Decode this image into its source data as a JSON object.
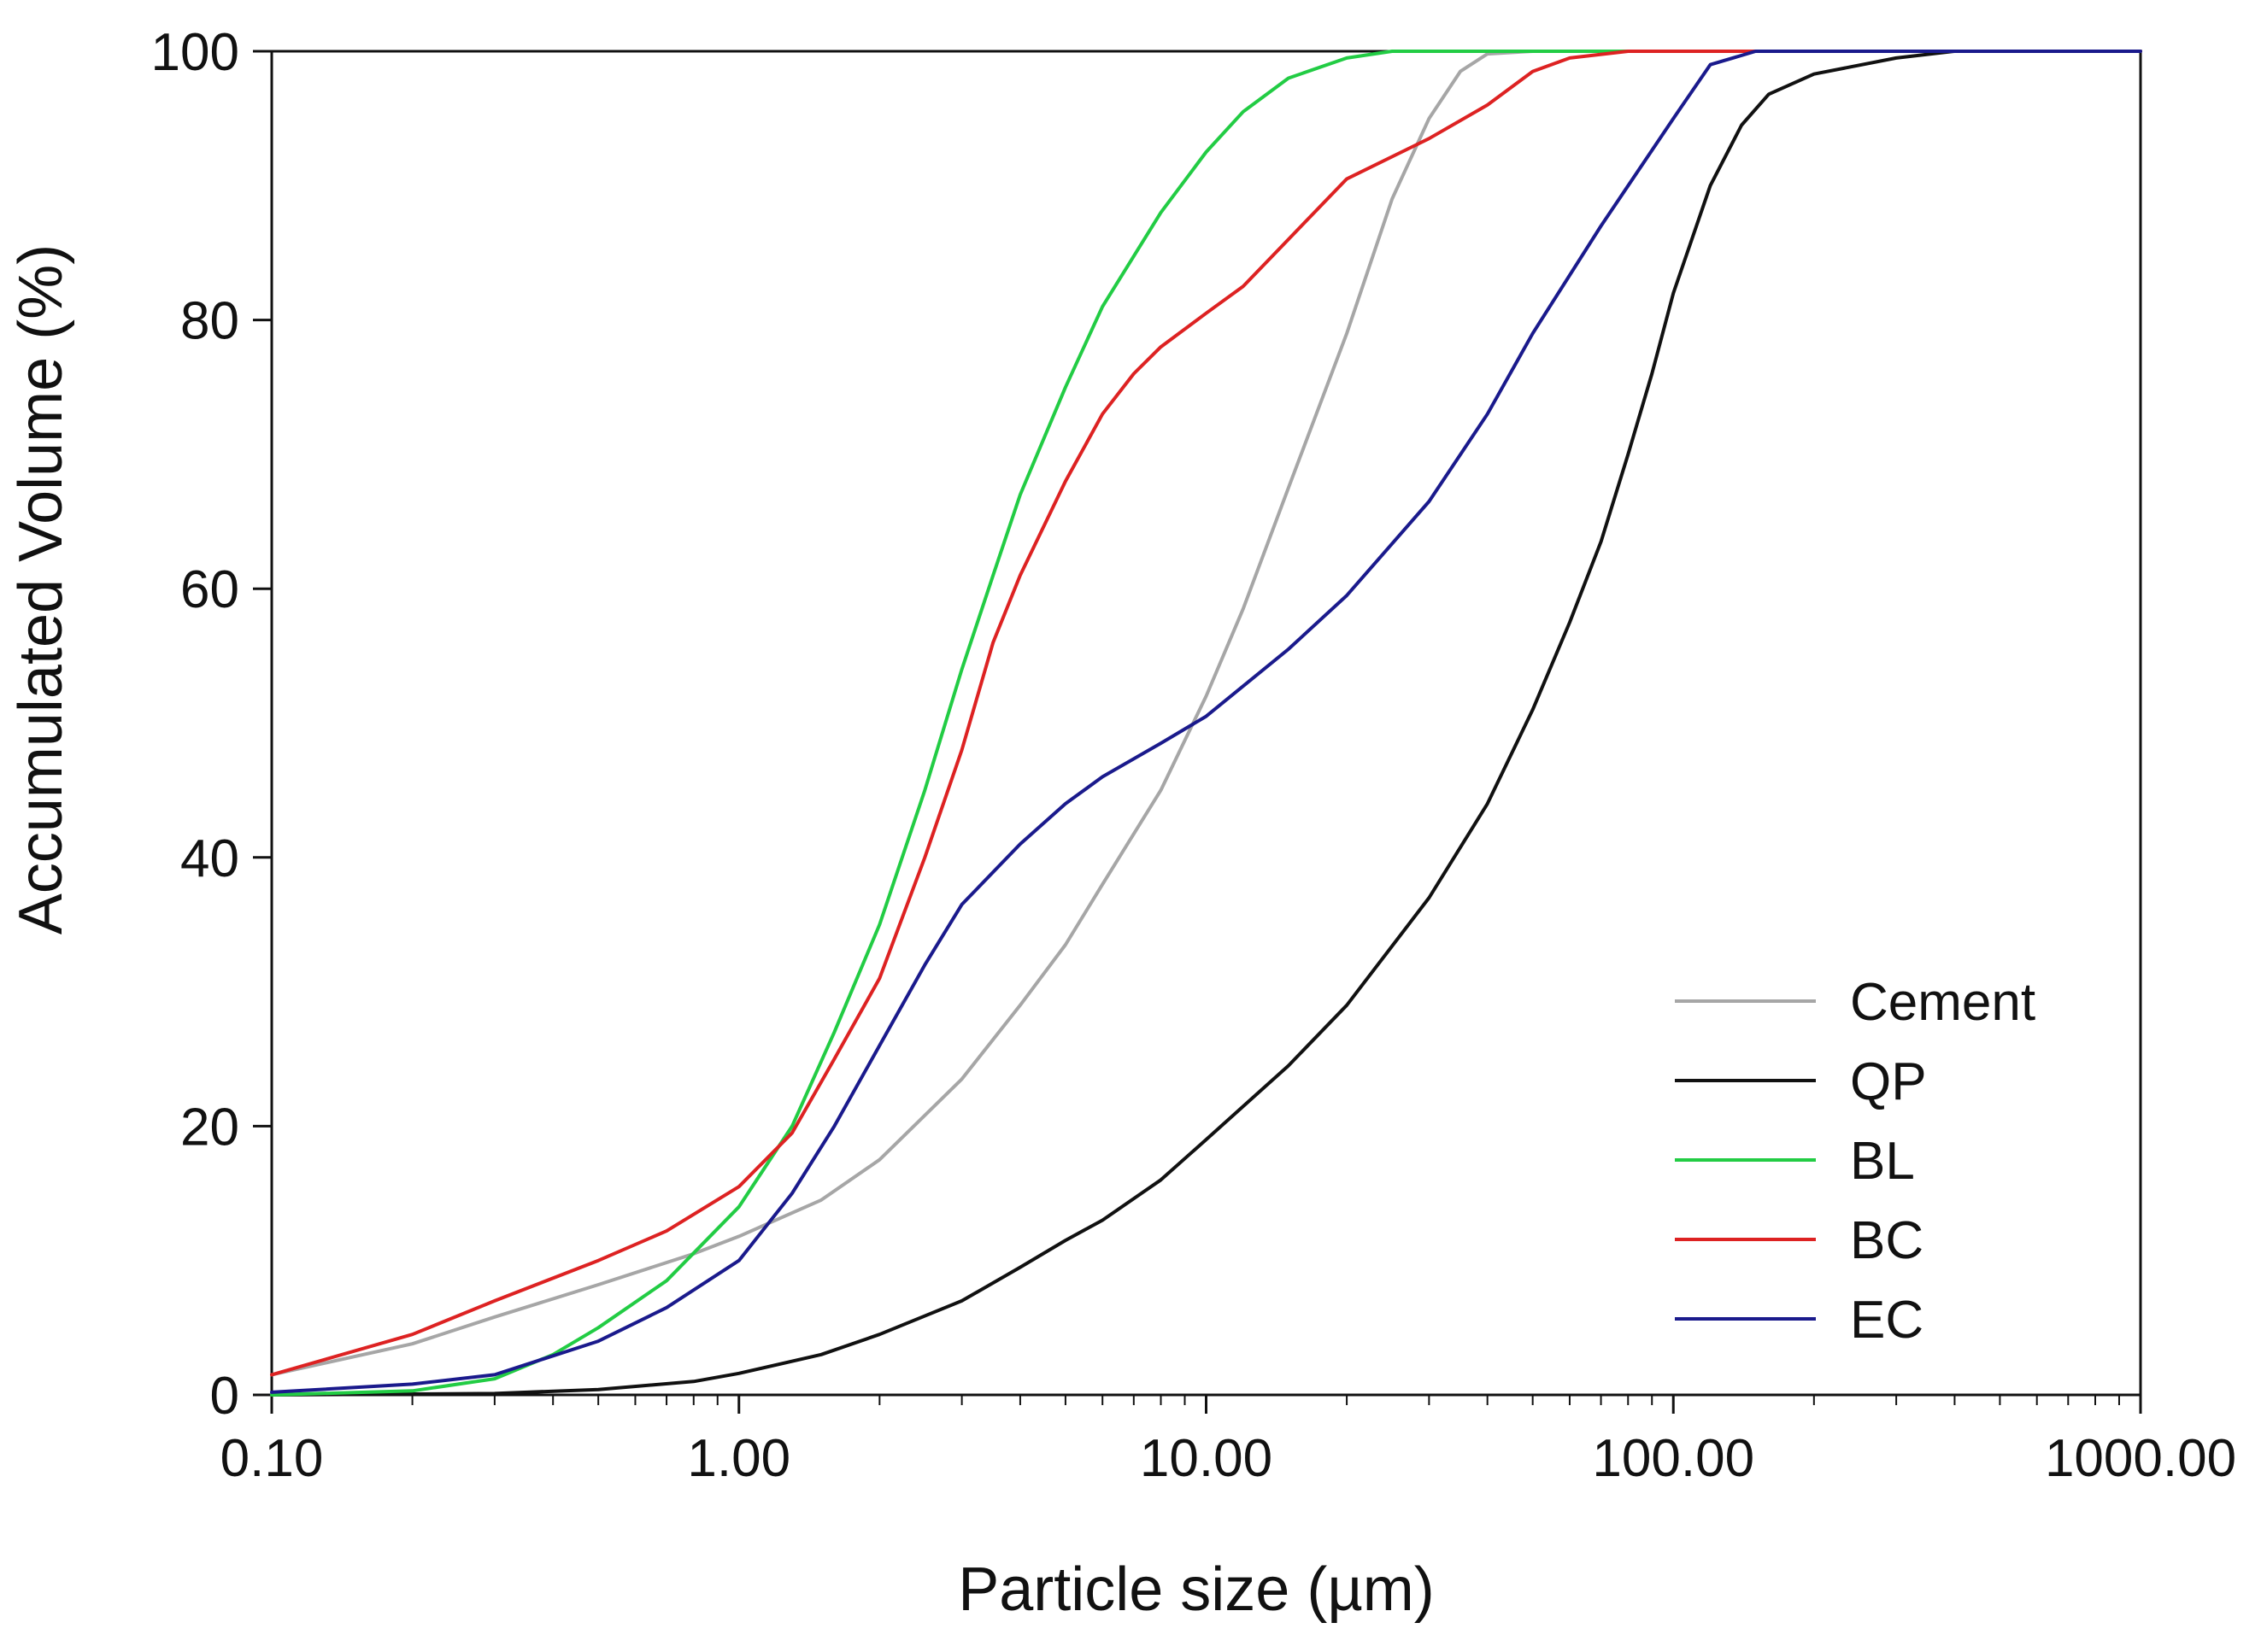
{
  "chart_data": {
    "type": "line",
    "title": "",
    "xlabel": "Particle size (µm)",
    "ylabel": "Accumulated Volume (%)",
    "xscale": "log",
    "xlim": [
      0.1,
      1000
    ],
    "ylim": [
      0,
      100
    ],
    "x_ticks": [
      0.1,
      1,
      10,
      100,
      1000
    ],
    "x_tick_labels": [
      "0.10",
      "1.00",
      "10.00",
      "100.00",
      "1000.00"
    ],
    "y_ticks": [
      0,
      20,
      40,
      60,
      80,
      100
    ],
    "y_tick_labels": [
      "0",
      "20",
      "40",
      "60",
      "80",
      "100"
    ],
    "grid": false,
    "legend_position": "bottom-right",
    "series": [
      {
        "name": "Cement",
        "color": "#a6a6a6",
        "points": [
          [
            0.1,
            1.5
          ],
          [
            0.2,
            3.8
          ],
          [
            0.3,
            5.8
          ],
          [
            0.5,
            8.2
          ],
          [
            0.8,
            10.5
          ],
          [
            1.0,
            11.8
          ],
          [
            1.5,
            14.5
          ],
          [
            2.0,
            17.5
          ],
          [
            3.0,
            23.5
          ],
          [
            4.0,
            29.0
          ],
          [
            5.0,
            33.5
          ],
          [
            6.0,
            38.0
          ],
          [
            8.0,
            45.0
          ],
          [
            10.0,
            52.0
          ],
          [
            12.0,
            58.5
          ],
          [
            15.0,
            67.5
          ],
          [
            20.0,
            79.0
          ],
          [
            25.0,
            89.0
          ],
          [
            30.0,
            95.0
          ],
          [
            35.0,
            98.5
          ],
          [
            40.0,
            99.8
          ],
          [
            50.0,
            100.0
          ],
          [
            1000.0,
            100.0
          ]
        ]
      },
      {
        "name": "QP",
        "color": "#111111",
        "points": [
          [
            0.1,
            0.0
          ],
          [
            0.3,
            0.1
          ],
          [
            0.5,
            0.4
          ],
          [
            0.8,
            1.0
          ],
          [
            1.0,
            1.6
          ],
          [
            1.5,
            3.0
          ],
          [
            2.0,
            4.5
          ],
          [
            3.0,
            7.0
          ],
          [
            4.0,
            9.5
          ],
          [
            5.0,
            11.5
          ],
          [
            6.0,
            13.0
          ],
          [
            8.0,
            16.0
          ],
          [
            10.0,
            19.0
          ],
          [
            15.0,
            24.5
          ],
          [
            20.0,
            29.0
          ],
          [
            30.0,
            37.0
          ],
          [
            40.0,
            44.0
          ],
          [
            50.0,
            51.0
          ],
          [
            60.0,
            57.5
          ],
          [
            70.0,
            63.5
          ],
          [
            80.0,
            70.0
          ],
          [
            90.0,
            76.0
          ],
          [
            100.0,
            82.0
          ],
          [
            120.0,
            90.0
          ],
          [
            140.0,
            94.5
          ],
          [
            160.0,
            96.8
          ],
          [
            200.0,
            98.3
          ],
          [
            300.0,
            99.5
          ],
          [
            400.0,
            100.0
          ],
          [
            1000.0,
            100.0
          ]
        ]
      },
      {
        "name": "BL",
        "color": "#22cc44",
        "points": [
          [
            0.1,
            0.0
          ],
          [
            0.2,
            0.3
          ],
          [
            0.3,
            1.2
          ],
          [
            0.4,
            3.0
          ],
          [
            0.5,
            5.0
          ],
          [
            0.7,
            8.5
          ],
          [
            1.0,
            14.0
          ],
          [
            1.3,
            20.0
          ],
          [
            1.6,
            27.0
          ],
          [
            2.0,
            35.0
          ],
          [
            2.5,
            45.0
          ],
          [
            3.0,
            54.0
          ],
          [
            3.5,
            61.0
          ],
          [
            4.0,
            67.0
          ],
          [
            5.0,
            75.0
          ],
          [
            6.0,
            81.0
          ],
          [
            8.0,
            88.0
          ],
          [
            10.0,
            92.5
          ],
          [
            12.0,
            95.5
          ],
          [
            15.0,
            98.0
          ],
          [
            20.0,
            99.5
          ],
          [
            25.0,
            100.0
          ],
          [
            1000.0,
            100.0
          ]
        ]
      },
      {
        "name": "BC",
        "color": "#dd2222",
        "points": [
          [
            0.1,
            1.5
          ],
          [
            0.2,
            4.5
          ],
          [
            0.3,
            7.0
          ],
          [
            0.5,
            10.0
          ],
          [
            0.7,
            12.2
          ],
          [
            1.0,
            15.5
          ],
          [
            1.3,
            19.5
          ],
          [
            1.6,
            25.0
          ],
          [
            2.0,
            31.0
          ],
          [
            2.5,
            40.0
          ],
          [
            3.0,
            48.0
          ],
          [
            3.5,
            56.0
          ],
          [
            4.0,
            61.0
          ],
          [
            5.0,
            68.0
          ],
          [
            6.0,
            73.0
          ],
          [
            7.0,
            76.0
          ],
          [
            8.0,
            78.0
          ],
          [
            10.0,
            80.5
          ],
          [
            12.0,
            82.5
          ],
          [
            15.0,
            86.0
          ],
          [
            20.0,
            90.5
          ],
          [
            30.0,
            93.5
          ],
          [
            40.0,
            96.0
          ],
          [
            50.0,
            98.5
          ],
          [
            60.0,
            99.5
          ],
          [
            80.0,
            100.0
          ],
          [
            1000.0,
            100.0
          ]
        ]
      },
      {
        "name": "EC",
        "color": "#1a1a8c",
        "points": [
          [
            0.1,
            0.2
          ],
          [
            0.2,
            0.8
          ],
          [
            0.3,
            1.5
          ],
          [
            0.5,
            4.0
          ],
          [
            0.7,
            6.5
          ],
          [
            1.0,
            10.0
          ],
          [
            1.3,
            15.0
          ],
          [
            1.6,
            20.0
          ],
          [
            2.0,
            26.0
          ],
          [
            2.5,
            32.0
          ],
          [
            3.0,
            36.5
          ],
          [
            4.0,
            41.0
          ],
          [
            5.0,
            44.0
          ],
          [
            6.0,
            46.0
          ],
          [
            8.0,
            48.5
          ],
          [
            10.0,
            50.5
          ],
          [
            15.0,
            55.5
          ],
          [
            20.0,
            59.5
          ],
          [
            30.0,
            66.5
          ],
          [
            40.0,
            73.0
          ],
          [
            50.0,
            79.0
          ],
          [
            70.0,
            87.0
          ],
          [
            100.0,
            95.0
          ],
          [
            120.0,
            99.0
          ],
          [
            150.0,
            100.0
          ],
          [
            1000.0,
            100.0
          ]
        ]
      }
    ]
  }
}
